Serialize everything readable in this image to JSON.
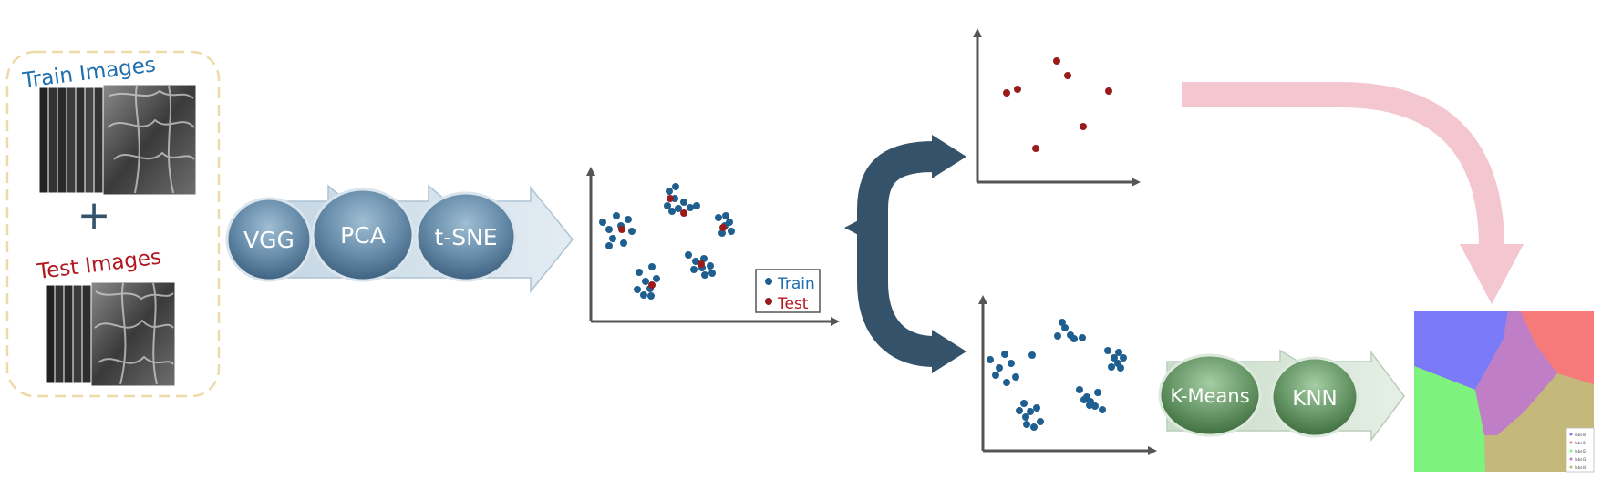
{
  "inputs": {
    "train_label": "Train Images",
    "test_label": "Test Images",
    "plus": "+"
  },
  "pipeline_1": [
    "VGG",
    "PCA",
    "t-SNE"
  ],
  "pipeline_2": [
    "K-Means",
    "KNN"
  ],
  "legend": {
    "train": "Train",
    "test": "Test"
  },
  "region_map_legend_entries": [
    "label0",
    "label1",
    "label2",
    "label3",
    "label4"
  ],
  "colors": {
    "train_text": "#1f6fae",
    "test_text": "#b0171f",
    "train_point": "#1f5f8f",
    "test_point": "#9b1b1b",
    "bubble_blue": "#5f85a3",
    "bubble_green": "#5f8f5f",
    "fork_arrow": "#34536a",
    "pink_arrow": "#f4c6cf",
    "dashed_border": "#ecdba8",
    "region_blue": "#7b7bfa",
    "region_red": "#f77a7a",
    "region_green": "#7df27d",
    "region_purple": "#c07ec6",
    "region_olive": "#c4b97a"
  }
}
